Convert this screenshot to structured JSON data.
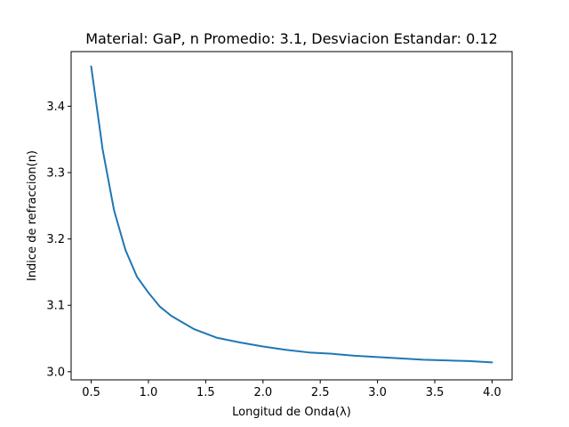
{
  "chart_data": {
    "type": "line",
    "title": "Material: GaP, n Promedio: 3.1, Desviacion Estandar: 0.12",
    "xlabel": "Longitud de Onda(λ)",
    "ylabel": "Indice de refraccion(n)",
    "xlim": [
      0.325,
      4.175
    ],
    "ylim": [
      2.9877,
      3.4823
    ],
    "xticks": [
      0.5,
      1.0,
      1.5,
      2.0,
      2.5,
      3.0,
      3.5,
      4.0
    ],
    "xtick_labels": [
      "0.5",
      "1.0",
      "1.5",
      "2.0",
      "2.5",
      "3.0",
      "3.5",
      "4.0"
    ],
    "yticks": [
      3.0,
      3.1,
      3.2,
      3.3,
      3.4
    ],
    "ytick_labels": [
      "3.0",
      "3.1",
      "3.2",
      "3.3",
      "3.4"
    ],
    "grid": false,
    "series": [
      {
        "color": "#1f77b4",
        "x": [
          0.5,
          0.6,
          0.7,
          0.8,
          0.9,
          1.0,
          1.1,
          1.2,
          1.4,
          1.6,
          1.8,
          2.0,
          2.2,
          2.4,
          2.6,
          2.8,
          3.0,
          3.2,
          3.4,
          3.6,
          3.8,
          4.0
        ],
        "y": [
          3.46,
          3.335,
          3.243,
          3.183,
          3.143,
          3.119,
          3.098,
          3.084,
          3.064,
          3.051,
          3.044,
          3.038,
          3.033,
          3.029,
          3.027,
          3.024,
          3.022,
          3.02,
          3.018,
          3.017,
          3.016,
          3.014
        ]
      }
    ]
  }
}
